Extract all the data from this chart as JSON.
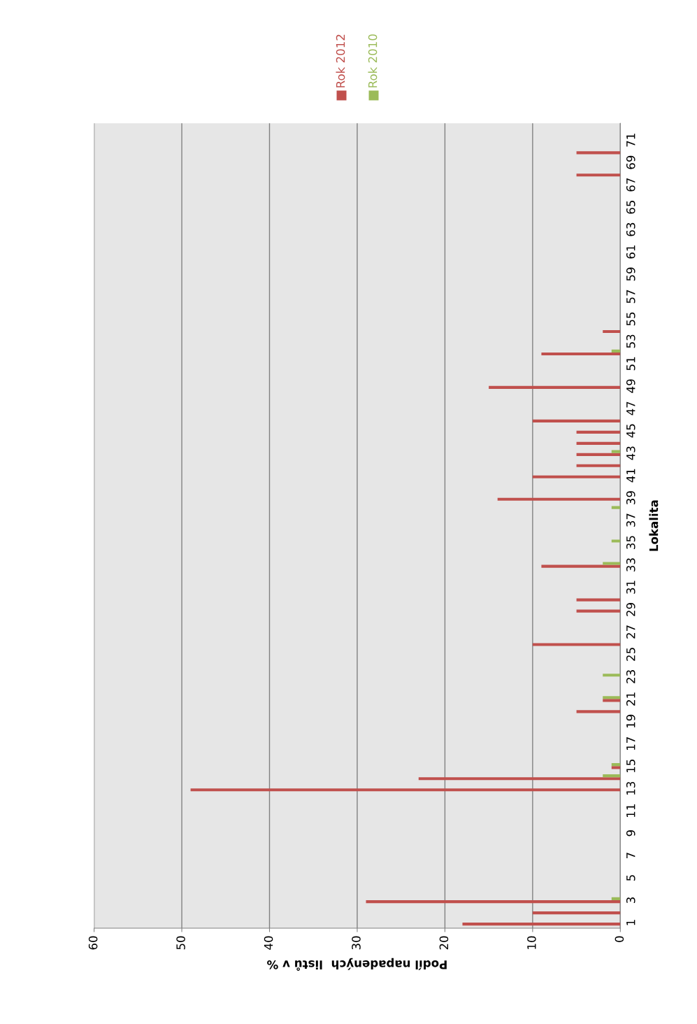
{
  "chart_data": {
    "type": "bar",
    "orientation": "horizontal",
    "xlabel": "Podíl napadených  listů v %",
    "ylabel": "Lokalita",
    "categories": [
      null,
      "71",
      null,
      "69",
      null,
      "67",
      null,
      "65",
      null,
      "63",
      null,
      "61",
      null,
      "59",
      null,
      "57",
      null,
      "55",
      null,
      "53",
      null,
      "51",
      null,
      "49",
      null,
      "47",
      null,
      "45",
      null,
      "43",
      null,
      "41",
      null,
      "39",
      null,
      "37",
      null,
      "35",
      null,
      "33",
      null,
      "31",
      null,
      "29",
      null,
      "27",
      null,
      "25",
      null,
      "23",
      null,
      "21",
      null,
      "19",
      null,
      "17",
      null,
      "15",
      null,
      "13",
      null,
      "11",
      null,
      "9",
      null,
      "7",
      null,
      "5",
      null,
      "3",
      null,
      "1"
    ],
    "series": [
      {
        "name": "Rok 2012",
        "color": "#c0504d",
        "values": [
          0,
          0,
          5,
          0,
          5,
          0,
          0,
          0,
          0,
          0,
          0,
          0,
          0,
          0,
          0,
          0,
          0,
          0,
          2,
          0,
          9,
          0,
          0,
          15,
          0,
          0,
          10,
          5,
          5,
          5,
          5,
          10,
          0,
          14,
          0,
          0,
          0,
          0,
          0,
          9,
          0,
          0,
          5,
          5,
          0,
          0,
          10,
          0,
          0,
          0,
          0,
          2,
          5,
          0,
          0,
          0,
          0,
          1,
          23,
          49,
          0,
          0,
          0,
          0,
          0,
          0,
          0,
          0,
          0,
          29,
          10,
          18
        ]
      },
      {
        "name": "Rok 2010",
        "color": "#9bbb59",
        "values": [
          0,
          0,
          0,
          0,
          0,
          0,
          0,
          0,
          0,
          0,
          0,
          0,
          0,
          0,
          0,
          0,
          0,
          0,
          0,
          0,
          1,
          0,
          0,
          0,
          0,
          0,
          0,
          0,
          0,
          1,
          0,
          0,
          0,
          0,
          1,
          0,
          0,
          1,
          0,
          2,
          0,
          0,
          0,
          0,
          0,
          0,
          0,
          0,
          0,
          2,
          0,
          2,
          0,
          0,
          0,
          0,
          0,
          1,
          2,
          0,
          0,
          0,
          0,
          0,
          0,
          0,
          0,
          0,
          0,
          1,
          0,
          0
        ]
      }
    ],
    "xlim": [
      60,
      0
    ],
    "xticks": [
      0,
      10,
      20,
      30,
      40,
      50,
      60
    ],
    "grid": "x",
    "legend": "top"
  }
}
